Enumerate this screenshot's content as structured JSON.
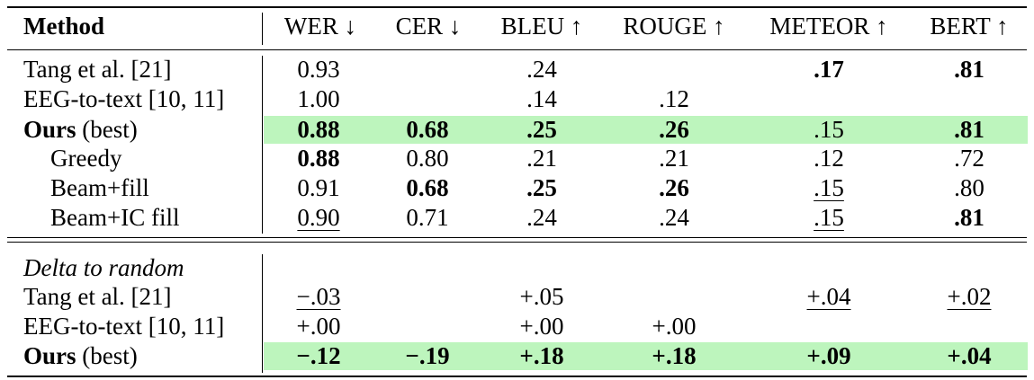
{
  "table": {
    "header": {
      "method": "Method",
      "cols": [
        "WER ↓",
        "CER ↓",
        "BLEU ↑",
        "ROUGE ↑",
        "METEOR ↑",
        "BERT ↑"
      ]
    },
    "rows": [
      {
        "name": "Tang et al. [21]",
        "cells": [
          "0.93",
          "",
          ".24",
          "",
          ".17",
          ".81"
        ]
      },
      {
        "name": "EEG-to-text [10, 11]",
        "cells": [
          "1.00",
          "",
          ".14",
          ".12",
          "",
          ""
        ]
      },
      {
        "name_bold": "Ours",
        "name_rest": "(best)",
        "cells": [
          "0.88",
          "0.68",
          ".25",
          ".26",
          ".15",
          ".81"
        ]
      },
      {
        "name": "Greedy",
        "cells": [
          "0.88",
          "0.80",
          ".21",
          ".21",
          ".12",
          ".72"
        ]
      },
      {
        "name": "Beam+fill",
        "cells": [
          "0.91",
          "0.68",
          ".25",
          ".26",
          ".15",
          ".80"
        ]
      },
      {
        "name": "Beam+IC fill",
        "cells": [
          "0.90",
          "0.71",
          ".24",
          ".24",
          ".15",
          ".81"
        ]
      }
    ],
    "delta_title": "Delta to random",
    "delta_rows": [
      {
        "name": "Tang et al. [21]",
        "cells": [
          "−.03",
          "",
          "+.05",
          "",
          "+.04",
          "+.02"
        ]
      },
      {
        "name": "EEG-to-text [10, 11]",
        "cells": [
          "+.00",
          "",
          "+.00",
          "+.00",
          "",
          ""
        ]
      },
      {
        "name_bold": "Ours",
        "name_rest": "(best)",
        "cells": [
          "−.12",
          "−.19",
          "+.18",
          "+.18",
          "+.09",
          "+.04"
        ]
      }
    ]
  },
  "highlight_color": "#bdf5bd"
}
